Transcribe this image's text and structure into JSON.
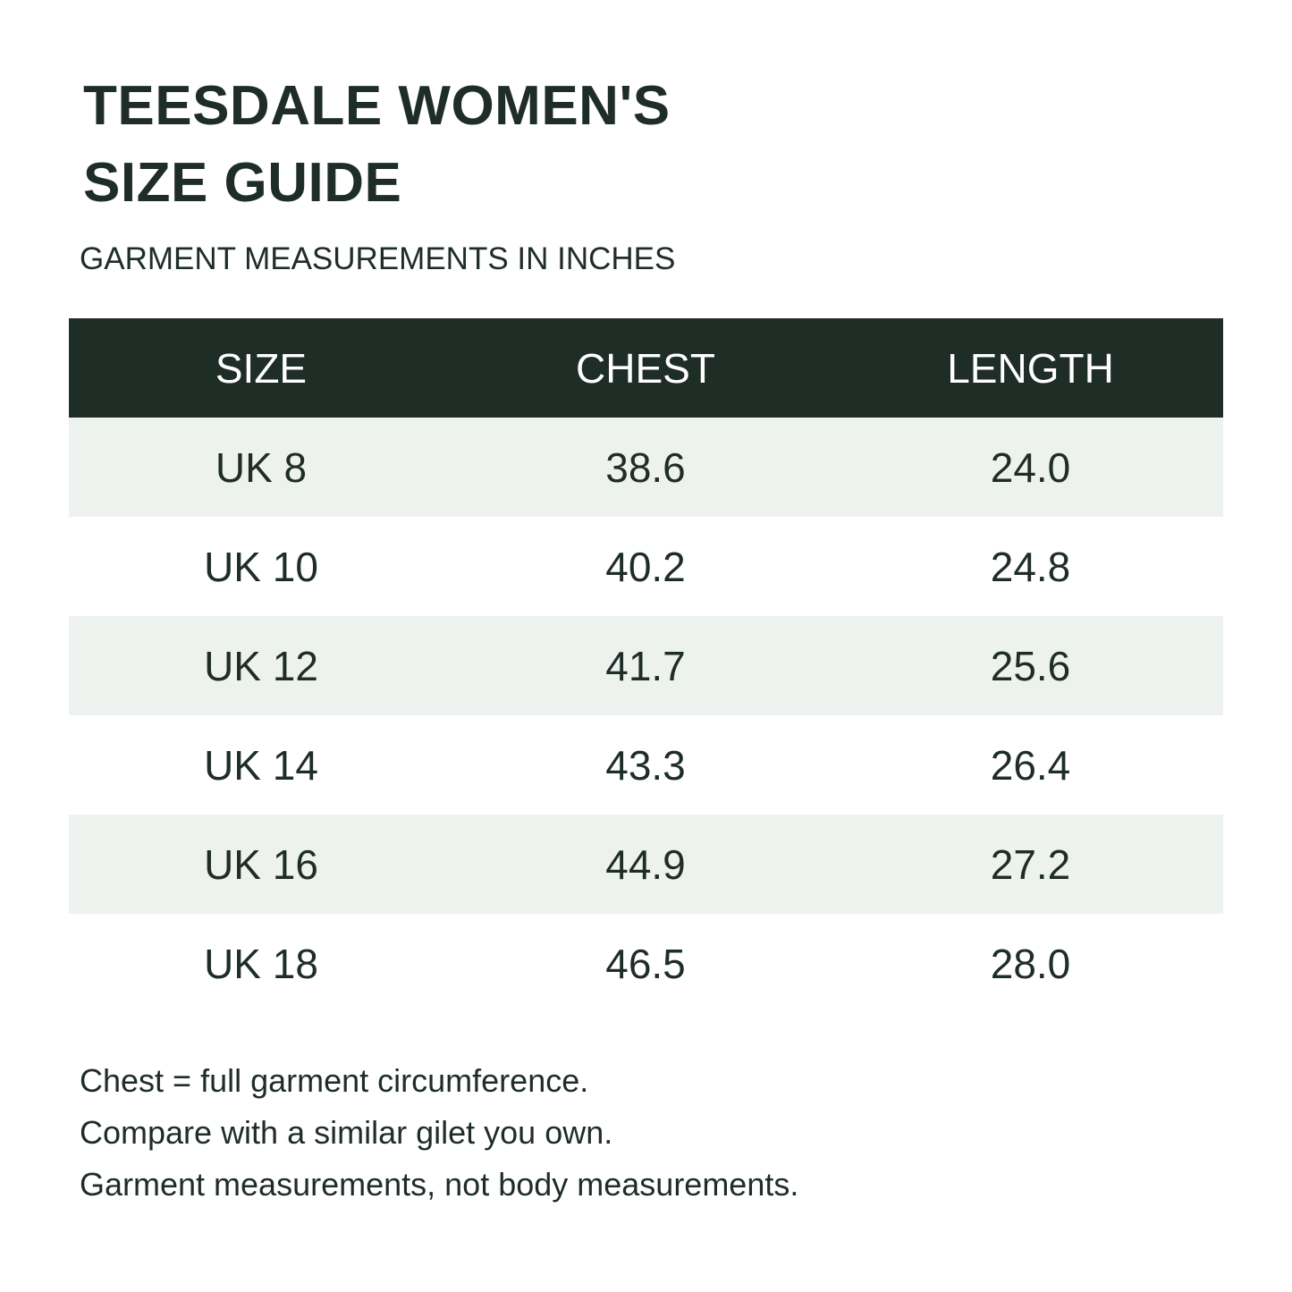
{
  "header": {
    "title_line1": "TEESDALE WOMEN'S",
    "title_line2": "SIZE GUIDE",
    "subtitle": "GARMENT MEASUREMENTS IN INCHES"
  },
  "table": {
    "columns": [
      "SIZE",
      "CHEST",
      "LENGTH"
    ],
    "rows": [
      [
        "UK 8",
        "38.6",
        "24.0"
      ],
      [
        "UK 10",
        "40.2",
        "24.8"
      ],
      [
        "UK 12",
        "41.7",
        "25.6"
      ],
      [
        "UK 14",
        "43.3",
        "26.4"
      ],
      [
        "UK 16",
        "44.9",
        "27.2"
      ],
      [
        "UK 18",
        "46.5",
        "28.0"
      ]
    ]
  },
  "notes": [
    "Chest = full garment circumference.",
    "Compare with a similar gilet you own.",
    "Garment measurements, not body measurements."
  ],
  "colors": {
    "header_bg": "#1f2d27",
    "stripe_bg": "#eef2ef",
    "text": "#1f2d27"
  }
}
